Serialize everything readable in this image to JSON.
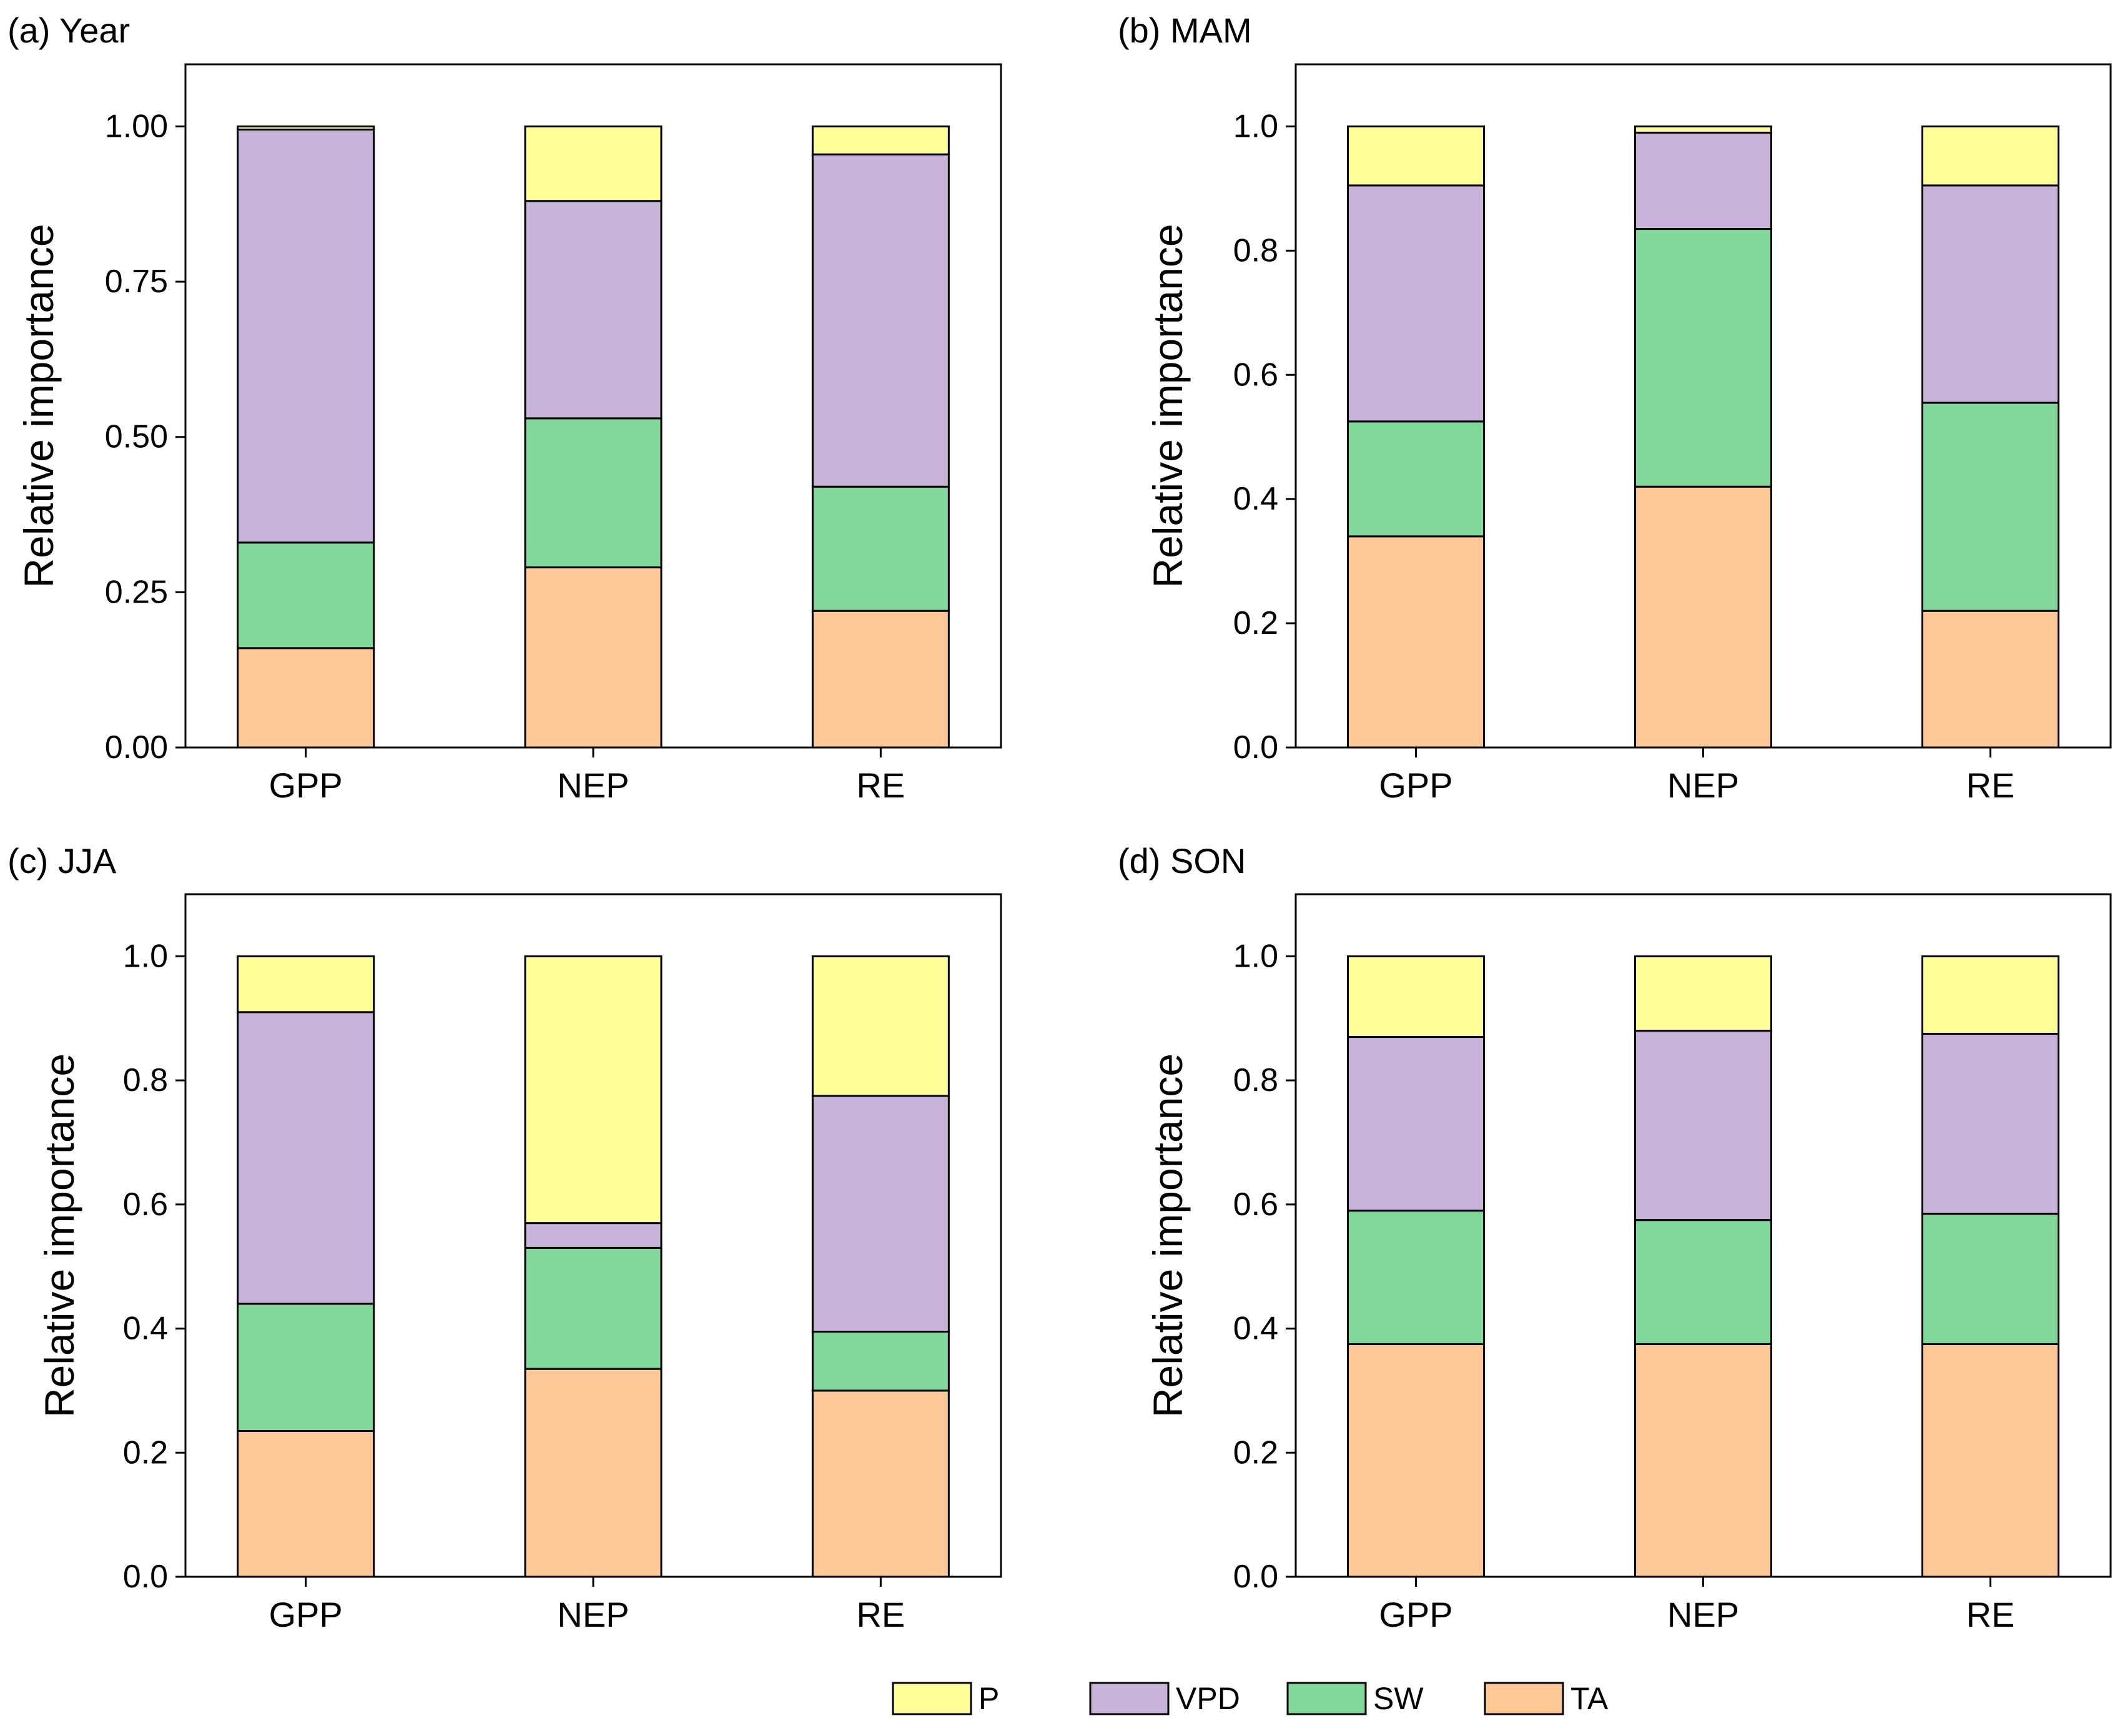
{
  "colors": {
    "P": "#ffff99",
    "VPD": "#c8b4d8",
    "SW": "#80d99b",
    "TA": "#fec796"
  },
  "legend": {
    "entries": [
      {
        "key": "P",
        "label": "P"
      },
      {
        "key": "VPD",
        "label": "VPD"
      },
      {
        "key": "SW",
        "label": "SW"
      },
      {
        "key": "TA",
        "label": "TA"
      }
    ]
  },
  "chart_data": [
    {
      "type": "bar",
      "stacked": true,
      "title": "(a) Year",
      "ylabel": "Relative importance",
      "ylim": [
        0,
        1.1
      ],
      "yticks": [
        "0.00",
        "0.25",
        "0.50",
        "0.75",
        "1.00"
      ],
      "ytick_values": [
        0,
        0.25,
        0.5,
        0.75,
        1.0
      ],
      "categories": [
        "GPP",
        "NEP",
        "RE"
      ],
      "series": [
        {
          "name": "TA",
          "values": [
            0.16,
            0.29,
            0.22
          ]
        },
        {
          "name": "SW",
          "values": [
            0.17,
            0.24,
            0.2
          ]
        },
        {
          "name": "VPD",
          "values": [
            0.665,
            0.35,
            0.535
          ]
        },
        {
          "name": "P",
          "values": [
            0.005,
            0.12,
            0.045
          ]
        }
      ]
    },
    {
      "type": "bar",
      "stacked": true,
      "title": "(b) MAM",
      "ylabel": "Relative importance",
      "ylim": [
        0,
        1.1
      ],
      "yticks": [
        "0.0",
        "0.2",
        "0.4",
        "0.6",
        "0.8",
        "1.0"
      ],
      "ytick_values": [
        0,
        0.2,
        0.4,
        0.6,
        0.8,
        1.0
      ],
      "categories": [
        "GPP",
        "NEP",
        "RE"
      ],
      "series": [
        {
          "name": "TA",
          "values": [
            0.34,
            0.42,
            0.22
          ]
        },
        {
          "name": "SW",
          "values": [
            0.185,
            0.415,
            0.335
          ]
        },
        {
          "name": "VPD",
          "values": [
            0.38,
            0.155,
            0.35
          ]
        },
        {
          "name": "P",
          "values": [
            0.095,
            0.01,
            0.095
          ]
        }
      ]
    },
    {
      "type": "bar",
      "stacked": true,
      "title": "(c) JJA",
      "ylabel": "Relative importance",
      "ylim": [
        0,
        1.1
      ],
      "yticks": [
        "0.0",
        "0.2",
        "0.4",
        "0.6",
        "0.8",
        "1.0"
      ],
      "ytick_values": [
        0,
        0.2,
        0.4,
        0.6,
        0.8,
        1.0
      ],
      "categories": [
        "GPP",
        "NEP",
        "RE"
      ],
      "series": [
        {
          "name": "TA",
          "values": [
            0.235,
            0.335,
            0.3
          ]
        },
        {
          "name": "SW",
          "values": [
            0.205,
            0.195,
            0.095
          ]
        },
        {
          "name": "VPD",
          "values": [
            0.47,
            0.04,
            0.38
          ]
        },
        {
          "name": "P",
          "values": [
            0.09,
            0.43,
            0.225
          ]
        }
      ]
    },
    {
      "type": "bar",
      "stacked": true,
      "title": "(d) SON",
      "ylabel": "Relative importance",
      "ylim": [
        0,
        1.1
      ],
      "yticks": [
        "0.0",
        "0.2",
        "0.4",
        "0.6",
        "0.8",
        "1.0"
      ],
      "ytick_values": [
        0,
        0.2,
        0.4,
        0.6,
        0.8,
        1.0
      ],
      "categories": [
        "GPP",
        "NEP",
        "RE"
      ],
      "series": [
        {
          "name": "TA",
          "values": [
            0.375,
            0.375,
            0.375
          ]
        },
        {
          "name": "SW",
          "values": [
            0.215,
            0.2,
            0.21
          ]
        },
        {
          "name": "VPD",
          "values": [
            0.28,
            0.305,
            0.29
          ]
        },
        {
          "name": "P",
          "values": [
            0.13,
            0.12,
            0.125
          ]
        }
      ]
    }
  ]
}
